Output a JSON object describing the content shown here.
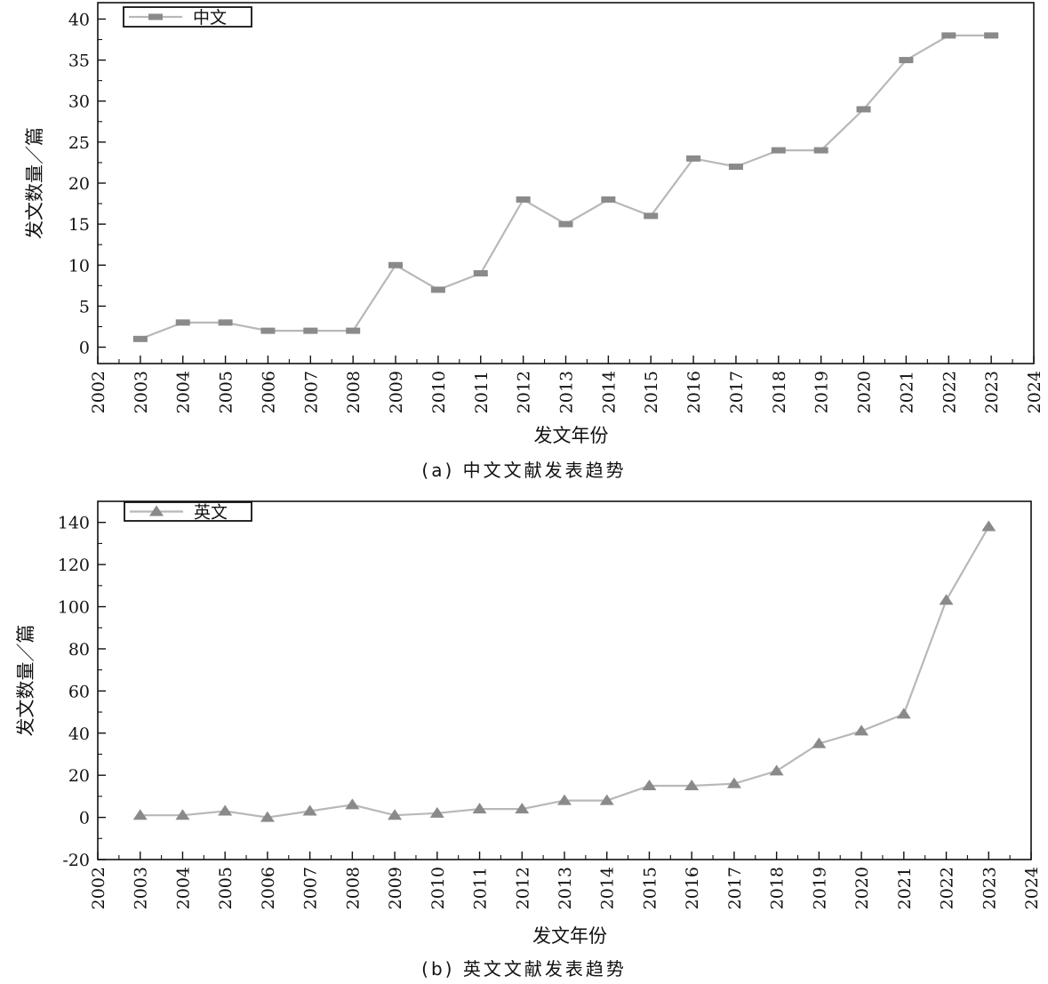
{
  "chart_data": [
    {
      "type": "line",
      "caption": "(a)  中文文献发表趋势",
      "xlabel": "发文年份",
      "ylabel": "发文数量／篇",
      "xlim": [
        2002,
        2024
      ],
      "ylim": [
        -2,
        42
      ],
      "x_ticks": [
        2002,
        2003,
        2004,
        2005,
        2006,
        2007,
        2008,
        2009,
        2010,
        2011,
        2012,
        2013,
        2014,
        2015,
        2016,
        2017,
        2018,
        2019,
        2020,
        2021,
        2022,
        2023,
        2024
      ],
      "y_ticks": [
        0,
        5,
        10,
        15,
        20,
        25,
        30,
        35,
        40
      ],
      "legend_position": "top-left",
      "marker": "square",
      "series": [
        {
          "name": "中文",
          "x": [
            2003,
            2004,
            2005,
            2006,
            2007,
            2008,
            2009,
            2010,
            2011,
            2012,
            2013,
            2014,
            2015,
            2016,
            2017,
            2018,
            2019,
            2020,
            2021,
            2022,
            2023
          ],
          "values": [
            1,
            3,
            3,
            2,
            2,
            2,
            10,
            7,
            9,
            18,
            15,
            18,
            16,
            23,
            22,
            24,
            24,
            29,
            35,
            38,
            38
          ]
        }
      ]
    },
    {
      "type": "line",
      "caption": "(b)  英文文献发表趋势",
      "xlabel": "发文年份",
      "ylabel": "发文数量／篇",
      "xlim": [
        2002,
        2024
      ],
      "ylim": [
        -20,
        150
      ],
      "x_ticks": [
        2002,
        2003,
        2004,
        2005,
        2006,
        2007,
        2008,
        2009,
        2010,
        2011,
        2012,
        2013,
        2014,
        2015,
        2016,
        2017,
        2018,
        2019,
        2020,
        2021,
        2022,
        2023,
        2024
      ],
      "y_ticks": [
        -20,
        0,
        20,
        40,
        60,
        80,
        100,
        120,
        140
      ],
      "legend_position": "top-left",
      "marker": "triangle",
      "series": [
        {
          "name": "英文",
          "x": [
            2003,
            2004,
            2005,
            2006,
            2007,
            2008,
            2009,
            2010,
            2011,
            2012,
            2013,
            2014,
            2015,
            2016,
            2017,
            2018,
            2019,
            2020,
            2021,
            2022,
            2023
          ],
          "values": [
            1,
            1,
            3,
            0,
            3,
            6,
            1,
            2,
            4,
            4,
            8,
            8,
            15,
            15,
            16,
            22,
            35,
            41,
            49,
            103,
            138
          ]
        }
      ]
    }
  ],
  "colors": {
    "line": "#b8b8b8",
    "marker": "#8a8a8a",
    "axis": "#111111"
  }
}
